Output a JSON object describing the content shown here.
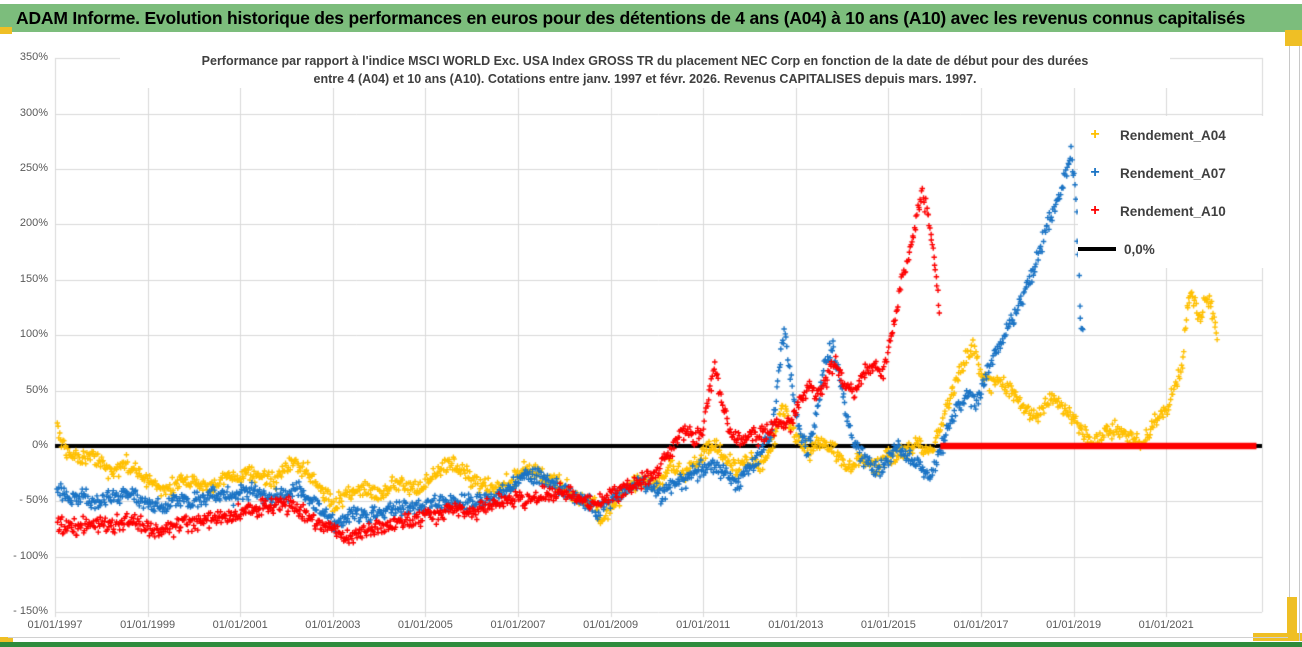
{
  "header": {
    "title": "ADAM Informe. Evolution historique des performances en euros pour des détentions de 4 ans (A04) à 10 ans (A10) avec les revenus connus capitalisés"
  },
  "colors": {
    "header_green": "#7CBD7C",
    "accent_gold": "#EFBF25",
    "footer_green": "#2E8B3C",
    "grid": "#D9D9D9",
    "axis_text": "#595959",
    "zero_line_black": "#000000",
    "zero_line_red": "#FE0000",
    "series_a04": "#FFC000",
    "series_a07": "#1B74C5",
    "series_a10": "#FE0000"
  },
  "legend": {
    "items": [
      {
        "label": "Rendement_A04",
        "marker": "+",
        "color": "#FFC000"
      },
      {
        "label": "Rendement_A07",
        "marker": "+",
        "color": "#1B74C5"
      },
      {
        "label": "Rendement_A10",
        "marker": "+",
        "color": "#FE0000"
      },
      {
        "label": "0,0%",
        "marker": "line",
        "color": "#000000"
      }
    ]
  },
  "chart_data": {
    "type": "scatter",
    "title_line1": "Performance par rapport à l'indice MSCI WORLD Exc. USA Index GROSS TR  du placement NEC Corp en fonction de la date de début pour des durées",
    "title_line2": "entre 4 (A04) et 10 ans (A10). Cotations entre janv. 1997 et févr. 2026. Revenus CAPITALISES depuis mars. 1997.",
    "grid": true,
    "legend_position": "top-right-inside",
    "x_axis": {
      "tick_labels": [
        "01/01/1997",
        "01/01/1999",
        "01/01/2001",
        "01/01/2003",
        "01/01/2005",
        "01/01/2007",
        "01/01/2009",
        "01/01/2011",
        "01/01/2013",
        "01/01/2015",
        "01/01/2017",
        "01/01/2019",
        "01/01/2021"
      ],
      "tick_years": [
        1997,
        1999,
        2001,
        2003,
        2005,
        2007,
        2009,
        2011,
        2013,
        2015,
        2017,
        2019,
        2021
      ],
      "range_years": [
        1997.0,
        2023.05
      ]
    },
    "y_axis": {
      "tick_labels": [
        "350%",
        "300%",
        "250%",
        "200%",
        "150%",
        "100%",
        "50%",
        "0%",
        "- 50%",
        "- 100%",
        "- 150%"
      ],
      "tick_values": [
        350,
        300,
        250,
        200,
        150,
        100,
        50,
        0,
        -50,
        -100,
        -150
      ],
      "range_pct": [
        -150,
        350
      ],
      "grid_step_pct": 50
    },
    "zero_line": {
      "label": "0,0%",
      "color": "#000000",
      "value_pct": 0
    },
    "series": [
      {
        "name": "Rendement_A04",
        "color": "#FFC000",
        "marker": "+",
        "points_unit": [
          "year_decimal",
          "performance_pct"
        ],
        "points": [
          [
            1997.05,
            18
          ],
          [
            1997.15,
            0
          ],
          [
            1997.3,
            -10
          ],
          [
            1997.6,
            -8
          ],
          [
            1997.9,
            -12
          ],
          [
            1998.2,
            -25
          ],
          [
            1998.55,
            -15
          ],
          [
            1999.0,
            -30
          ],
          [
            1999.3,
            -40
          ],
          [
            1999.8,
            -30
          ],
          [
            2000.3,
            -37
          ],
          [
            2000.7,
            -28
          ],
          [
            2001.3,
            -25
          ],
          [
            2001.8,
            -32
          ],
          [
            2002.1,
            -14
          ],
          [
            2002.4,
            -20
          ],
          [
            2002.7,
            -38
          ],
          [
            2003.0,
            -54
          ],
          [
            2003.3,
            -44
          ],
          [
            2003.7,
            -38
          ],
          [
            2004.0,
            -44
          ],
          [
            2004.4,
            -34
          ],
          [
            2004.8,
            -38
          ],
          [
            2005.1,
            -30
          ],
          [
            2005.5,
            -14
          ],
          [
            2005.8,
            -24
          ],
          [
            2006.1,
            -33
          ],
          [
            2006.5,
            -38
          ],
          [
            2006.9,
            -30
          ],
          [
            2007.2,
            -20
          ],
          [
            2007.5,
            -26
          ],
          [
            2007.8,
            -32
          ],
          [
            2008.1,
            -40
          ],
          [
            2008.4,
            -52
          ],
          [
            2008.6,
            -46
          ],
          [
            2008.8,
            -68
          ],
          [
            2009.0,
            -56
          ],
          [
            2009.3,
            -42
          ],
          [
            2009.6,
            -30
          ],
          [
            2010.0,
            -36
          ],
          [
            2010.3,
            -16
          ],
          [
            2010.6,
            -26
          ],
          [
            2010.9,
            -12
          ],
          [
            2011.15,
            2
          ],
          [
            2011.4,
            -6
          ],
          [
            2011.7,
            -20
          ],
          [
            2012.0,
            -12
          ],
          [
            2012.3,
            -16
          ],
          [
            2012.55,
            8
          ],
          [
            2012.7,
            38
          ],
          [
            2012.85,
            22
          ],
          [
            2013.1,
            4
          ],
          [
            2013.3,
            -6
          ],
          [
            2013.5,
            4
          ],
          [
            2013.8,
            -4
          ],
          [
            2014.1,
            -20
          ],
          [
            2014.4,
            -12
          ],
          [
            2014.7,
            -20
          ],
          [
            2015.0,
            -10
          ],
          [
            2015.3,
            -6
          ],
          [
            2015.6,
            2
          ],
          [
            2015.9,
            -4
          ],
          [
            2016.1,
            12
          ],
          [
            2016.3,
            40
          ],
          [
            2016.5,
            62
          ],
          [
            2016.7,
            82
          ],
          [
            2016.85,
            90
          ],
          [
            2017.0,
            68
          ],
          [
            2017.2,
            55
          ],
          [
            2017.45,
            60
          ],
          [
            2017.7,
            48
          ],
          [
            2018.0,
            32
          ],
          [
            2018.2,
            24
          ],
          [
            2018.5,
            44
          ],
          [
            2018.75,
            36
          ],
          [
            2019.0,
            26
          ],
          [
            2019.2,
            12
          ],
          [
            2019.45,
            4
          ],
          [
            2019.7,
            14
          ],
          [
            2020.0,
            16
          ],
          [
            2020.3,
            6
          ],
          [
            2020.5,
            2
          ],
          [
            2020.7,
            18
          ],
          [
            2021.0,
            32
          ],
          [
            2021.2,
            55
          ],
          [
            2021.35,
            72
          ],
          [
            2021.45,
            125
          ],
          [
            2021.55,
            140
          ],
          [
            2021.7,
            118
          ],
          [
            2021.85,
            128
          ],
          [
            2021.95,
            132
          ],
          [
            2022.05,
            110
          ],
          [
            2022.1,
            96
          ]
        ]
      },
      {
        "name": "Rendement_A07",
        "color": "#1B74C5",
        "marker": "+",
        "points_unit": [
          "year_decimal",
          "performance_pct"
        ],
        "points": [
          [
            1997.05,
            -40
          ],
          [
            1997.3,
            -48
          ],
          [
            1997.6,
            -44
          ],
          [
            1997.9,
            -52
          ],
          [
            1998.2,
            -46
          ],
          [
            1998.6,
            -42
          ],
          [
            1999.0,
            -52
          ],
          [
            1999.3,
            -56
          ],
          [
            1999.7,
            -50
          ],
          [
            2000.0,
            -48
          ],
          [
            2000.4,
            -42
          ],
          [
            2000.8,
            -46
          ],
          [
            2001.2,
            -40
          ],
          [
            2001.6,
            -46
          ],
          [
            2002.0,
            -44
          ],
          [
            2002.25,
            -38
          ],
          [
            2002.6,
            -52
          ],
          [
            2003.05,
            -70
          ],
          [
            2003.4,
            -62
          ],
          [
            2003.8,
            -64
          ],
          [
            2004.2,
            -56
          ],
          [
            2004.6,
            -58
          ],
          [
            2005.0,
            -54
          ],
          [
            2005.4,
            -50
          ],
          [
            2005.8,
            -52
          ],
          [
            2006.2,
            -48
          ],
          [
            2006.6,
            -44
          ],
          [
            2006.95,
            -34
          ],
          [
            2007.2,
            -24
          ],
          [
            2007.5,
            -28
          ],
          [
            2007.8,
            -34
          ],
          [
            2008.1,
            -42
          ],
          [
            2008.45,
            -50
          ],
          [
            2008.7,
            -58
          ],
          [
            2009.0,
            -50
          ],
          [
            2009.3,
            -40
          ],
          [
            2009.6,
            -32
          ],
          [
            2009.9,
            -38
          ],
          [
            2010.1,
            -44
          ],
          [
            2010.4,
            -36
          ],
          [
            2010.7,
            -28
          ],
          [
            2011.0,
            -20
          ],
          [
            2011.2,
            -16
          ],
          [
            2011.5,
            -26
          ],
          [
            2011.75,
            -34
          ],
          [
            2012.0,
            -20
          ],
          [
            2012.25,
            -6
          ],
          [
            2012.5,
            15
          ],
          [
            2012.65,
            75
          ],
          [
            2012.75,
            105
          ],
          [
            2012.9,
            60
          ],
          [
            2013.05,
            20
          ],
          [
            2013.25,
            -5
          ],
          [
            2013.45,
            30
          ],
          [
            2013.65,
            80
          ],
          [
            2013.8,
            88
          ],
          [
            2014.0,
            48
          ],
          [
            2014.2,
            8
          ],
          [
            2014.45,
            -10
          ],
          [
            2014.75,
            -24
          ],
          [
            2015.0,
            -12
          ],
          [
            2015.2,
            0
          ],
          [
            2015.45,
            -8
          ],
          [
            2015.7,
            -20
          ],
          [
            2015.9,
            -30
          ],
          [
            2016.1,
            -8
          ],
          [
            2016.3,
            18
          ],
          [
            2016.5,
            38
          ],
          [
            2016.7,
            45
          ],
          [
            2016.9,
            40
          ],
          [
            2017.1,
            60
          ],
          [
            2017.3,
            85
          ],
          [
            2017.5,
            100
          ],
          [
            2017.7,
            115
          ],
          [
            2017.9,
            135
          ],
          [
            2018.1,
            155
          ],
          [
            2018.3,
            180
          ],
          [
            2018.5,
            205
          ],
          [
            2018.7,
            225
          ],
          [
            2018.85,
            250
          ],
          [
            2018.95,
            265
          ],
          [
            2019.05,
            230
          ],
          [
            2019.15,
            110
          ],
          [
            2019.2,
            105
          ]
        ]
      },
      {
        "name": "Rendement_A10",
        "color": "#FE0000",
        "marker": "+",
        "points_unit": [
          "year_decimal",
          "performance_pct"
        ],
        "points": [
          [
            1997.05,
            -70
          ],
          [
            1997.4,
            -74
          ],
          [
            1997.8,
            -70
          ],
          [
            1998.2,
            -72
          ],
          [
            1998.6,
            -68
          ],
          [
            1999.0,
            -72
          ],
          [
            1999.3,
            -76
          ],
          [
            1999.7,
            -72
          ],
          [
            2000.1,
            -68
          ],
          [
            2000.5,
            -66
          ],
          [
            2001.0,
            -60
          ],
          [
            2001.5,
            -54
          ],
          [
            2001.8,
            -56
          ],
          [
            2002.1,
            -52
          ],
          [
            2002.4,
            -62
          ],
          [
            2002.7,
            -70
          ],
          [
            2003.0,
            -76
          ],
          [
            2003.3,
            -82
          ],
          [
            2003.6,
            -78
          ],
          [
            2004.0,
            -74
          ],
          [
            2004.4,
            -70
          ],
          [
            2004.8,
            -67
          ],
          [
            2005.2,
            -62
          ],
          [
            2005.6,
            -58
          ],
          [
            2006.0,
            -60
          ],
          [
            2006.4,
            -54
          ],
          [
            2006.8,
            -48
          ],
          [
            2007.2,
            -50
          ],
          [
            2007.6,
            -44
          ],
          [
            2008.0,
            -42
          ],
          [
            2008.35,
            -48
          ],
          [
            2008.7,
            -52
          ],
          [
            2009.0,
            -46
          ],
          [
            2009.3,
            -40
          ],
          [
            2009.6,
            -34
          ],
          [
            2009.9,
            -28
          ],
          [
            2010.1,
            -16
          ],
          [
            2010.35,
            0
          ],
          [
            2010.6,
            14
          ],
          [
            2010.8,
            6
          ],
          [
            2011.0,
            18
          ],
          [
            2011.15,
            50
          ],
          [
            2011.25,
            72
          ],
          [
            2011.4,
            40
          ],
          [
            2011.6,
            12
          ],
          [
            2011.8,
            4
          ],
          [
            2012.0,
            12
          ],
          [
            2012.2,
            8
          ],
          [
            2012.45,
            16
          ],
          [
            2012.7,
            24
          ],
          [
            2012.9,
            20
          ],
          [
            2013.1,
            40
          ],
          [
            2013.3,
            55
          ],
          [
            2013.5,
            45
          ],
          [
            2013.7,
            62
          ],
          [
            2013.85,
            78
          ],
          [
            2014.05,
            56
          ],
          [
            2014.25,
            46
          ],
          [
            2014.5,
            66
          ],
          [
            2014.7,
            76
          ],
          [
            2014.85,
            62
          ],
          [
            2015.0,
            85
          ],
          [
            2015.15,
            115
          ],
          [
            2015.3,
            150
          ],
          [
            2015.45,
            175
          ],
          [
            2015.6,
            205
          ],
          [
            2015.72,
            228
          ],
          [
            2015.85,
            210
          ],
          [
            2015.95,
            182
          ],
          [
            2016.05,
            150
          ],
          [
            2016.1,
            120
          ]
        ],
        "flat_zero_from_year": 2016.12,
        "flat_zero_to_year": 2022.95
      }
    ]
  }
}
